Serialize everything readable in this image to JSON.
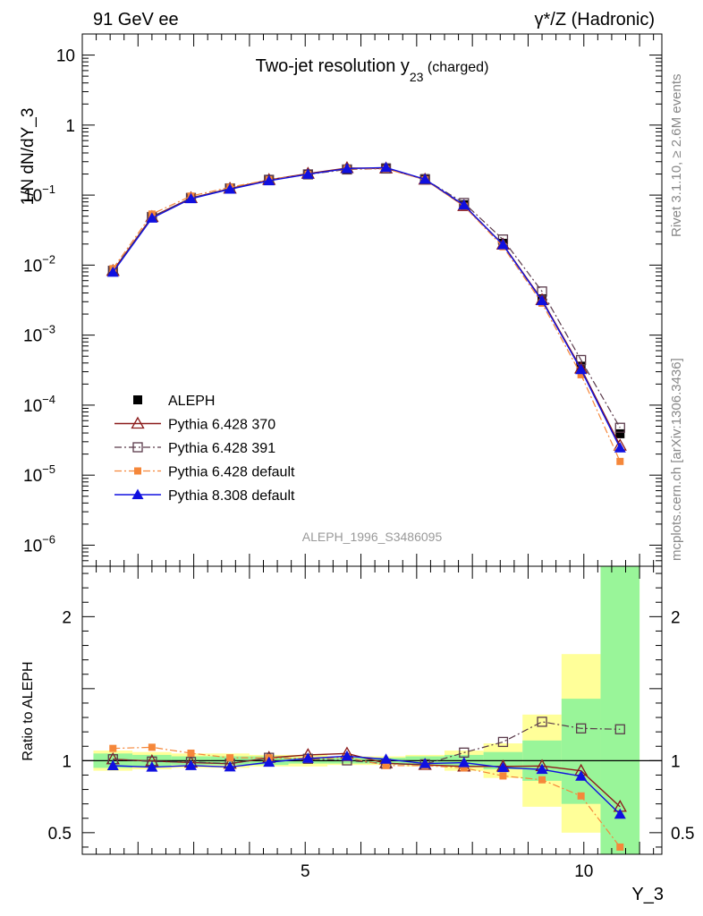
{
  "header": {
    "left": "91 GeV ee",
    "right": "γ*/Z (Hadronic)"
  },
  "side_text": {
    "rivet": "Rivet 3.1.10, ≥ 2.6M events",
    "mcplots": "mcplots.cern.ch [arXiv:1306.3436]"
  },
  "watermark": "ALEPH_1996_S3486095",
  "chart_data": [
    {
      "type": "line",
      "panel": "main",
      "title": "Two-jet resolution y",
      "title_sub": "23",
      "title_suffix": " (charged)",
      "ylabel": "1/N dN/dY_3",
      "yscale": "log",
      "ylim": [
        5e-07,
        20
      ],
      "xlim": [
        1.0,
        11.4
      ],
      "y_ticks": [
        {
          "value": 10,
          "label": "10"
        },
        {
          "value": 1,
          "label": "1"
        },
        {
          "value": 0.1,
          "label": "10",
          "exp": "−1"
        },
        {
          "value": 0.01,
          "label": "10",
          "exp": "−2"
        },
        {
          "value": 0.001,
          "label": "10",
          "exp": "−3"
        },
        {
          "value": 0.0001,
          "label": "10",
          "exp": "−4"
        },
        {
          "value": 1e-05,
          "label": "10",
          "exp": "−5"
        },
        {
          "value": 1e-06,
          "label": "10",
          "exp": "−6"
        }
      ],
      "x": [
        1.55,
        2.25,
        2.95,
        3.65,
        4.35,
        5.05,
        5.75,
        6.45,
        7.15,
        7.85,
        8.55,
        9.25,
        9.95,
        10.65
      ],
      "legend": "upper-left",
      "series": [
        {
          "name": "ALEPH",
          "marker": "filled-square",
          "color": "#000000",
          "line": "none",
          "values": [
            0.0082,
            0.049,
            0.092,
            0.127,
            0.162,
            0.195,
            0.232,
            0.245,
            0.172,
            0.073,
            0.0205,
            0.0033,
            0.00036,
            3.9e-05
          ]
        },
        {
          "name": "Pythia 6.428 370",
          "marker": "open-triangle",
          "color": "#8b1a1a",
          "line": "solid",
          "values": [
            0.0083,
            0.0489,
            0.0908,
            0.124,
            0.1652,
            0.2025,
            0.2436,
            0.2407,
            0.1668,
            0.0701,
            0.0197,
            0.00318,
            0.000335,
            2.65e-05
          ]
        },
        {
          "name": "Pythia 6.428 391",
          "marker": "open-square",
          "color": "#5a3a4a",
          "line": "dashdot",
          "values": [
            0.0083,
            0.0487,
            0.0911,
            0.1244,
            0.1653,
            0.1975,
            0.2324,
            0.2396,
            0.1678,
            0.0771,
            0.0232,
            0.0042,
            0.000441,
            4.75e-05
          ]
        },
        {
          "name": "Pythia 6.428 default",
          "marker": "filled-small-square",
          "color": "#f5873a",
          "line": "dashdot",
          "values": [
            0.0089,
            0.0536,
            0.0968,
            0.1295,
            0.1653,
            0.1978,
            0.2371,
            0.2367,
            0.166,
            0.0693,
            0.0183,
            0.00286,
            0.000272,
            1.57e-05
          ]
        },
        {
          "name": "Pythia 8.308 default",
          "marker": "filled-triangle",
          "color": "#1010e0",
          "line": "solid",
          "values": [
            0.0079,
            0.0468,
            0.0888,
            0.1214,
            0.16,
            0.1981,
            0.2391,
            0.2475,
            0.1686,
            0.072,
            0.0195,
            0.0031,
            0.000321,
            2.45e-05
          ]
        }
      ]
    },
    {
      "type": "line",
      "panel": "ratio",
      "ylabel": "Ratio to ALEPH",
      "xlabel": "Y_3",
      "ylim": [
        0.35,
        2.35
      ],
      "xlim": [
        1.0,
        11.4
      ],
      "x_ticks": [
        5,
        10
      ],
      "y_ticks": [
        0.5,
        1,
        2
      ],
      "x": [
        1.55,
        2.25,
        2.95,
        3.65,
        4.35,
        5.05,
        5.75,
        6.45,
        7.15,
        7.85,
        8.55,
        9.25,
        9.95,
        10.65
      ],
      "bands": {
        "edges": [
          1.2,
          1.9,
          2.6,
          3.3,
          4.0,
          4.7,
          5.4,
          6.1,
          6.8,
          7.5,
          8.2,
          8.9,
          9.6,
          10.3,
          11.0
        ],
        "yellow": [
          [
            0.93,
            1.07
          ],
          [
            0.94,
            1.06
          ],
          [
            0.95,
            1.05
          ],
          [
            0.95,
            1.05
          ],
          [
            0.96,
            1.04
          ],
          [
            0.96,
            1.04
          ],
          [
            0.97,
            1.03
          ],
          [
            0.97,
            1.03
          ],
          [
            0.96,
            1.04
          ],
          [
            0.93,
            1.07
          ],
          [
            0.88,
            1.12
          ],
          [
            0.68,
            1.32
          ],
          [
            0.5,
            1.74
          ],
          [
            0.35,
            2.35
          ]
        ],
        "green": [
          [
            0.95,
            1.05
          ],
          [
            0.96,
            1.04
          ],
          [
            0.97,
            1.03
          ],
          [
            0.97,
            1.03
          ],
          [
            0.97,
            1.03
          ],
          [
            0.98,
            1.02
          ],
          [
            0.98,
            1.02
          ],
          [
            0.98,
            1.02
          ],
          [
            0.97,
            1.03
          ],
          [
            0.96,
            1.04
          ],
          [
            0.94,
            1.06
          ],
          [
            0.86,
            1.14
          ],
          [
            0.7,
            1.43
          ],
          [
            0.35,
            2.35
          ]
        ]
      },
      "series": [
        {
          "name": "Pythia 6.428 370",
          "values": [
            1.01,
            0.997,
            0.987,
            0.979,
            1.02,
            1.04,
            1.05,
            0.982,
            0.971,
            0.96,
            0.96,
            0.963,
            0.93,
            0.68
          ]
        },
        {
          "name": "Pythia 6.428 391",
          "values": [
            1.01,
            0.994,
            0.991,
            0.98,
            1.02,
            1.013,
            1.002,
            0.978,
            0.975,
            1.056,
            1.13,
            1.27,
            1.224,
            1.218
          ]
        },
        {
          "name": "Pythia 6.428 default",
          "values": [
            1.085,
            1.093,
            1.052,
            1.02,
            1.02,
            1.015,
            1.022,
            0.966,
            0.965,
            0.95,
            0.894,
            0.867,
            0.755,
            0.4
          ]
        },
        {
          "name": "Pythia 8.308 default",
          "values": [
            0.965,
            0.955,
            0.966,
            0.956,
            0.989,
            1.016,
            1.031,
            1.01,
            0.98,
            0.986,
            0.952,
            0.939,
            0.892,
            0.628
          ]
        }
      ]
    }
  ]
}
